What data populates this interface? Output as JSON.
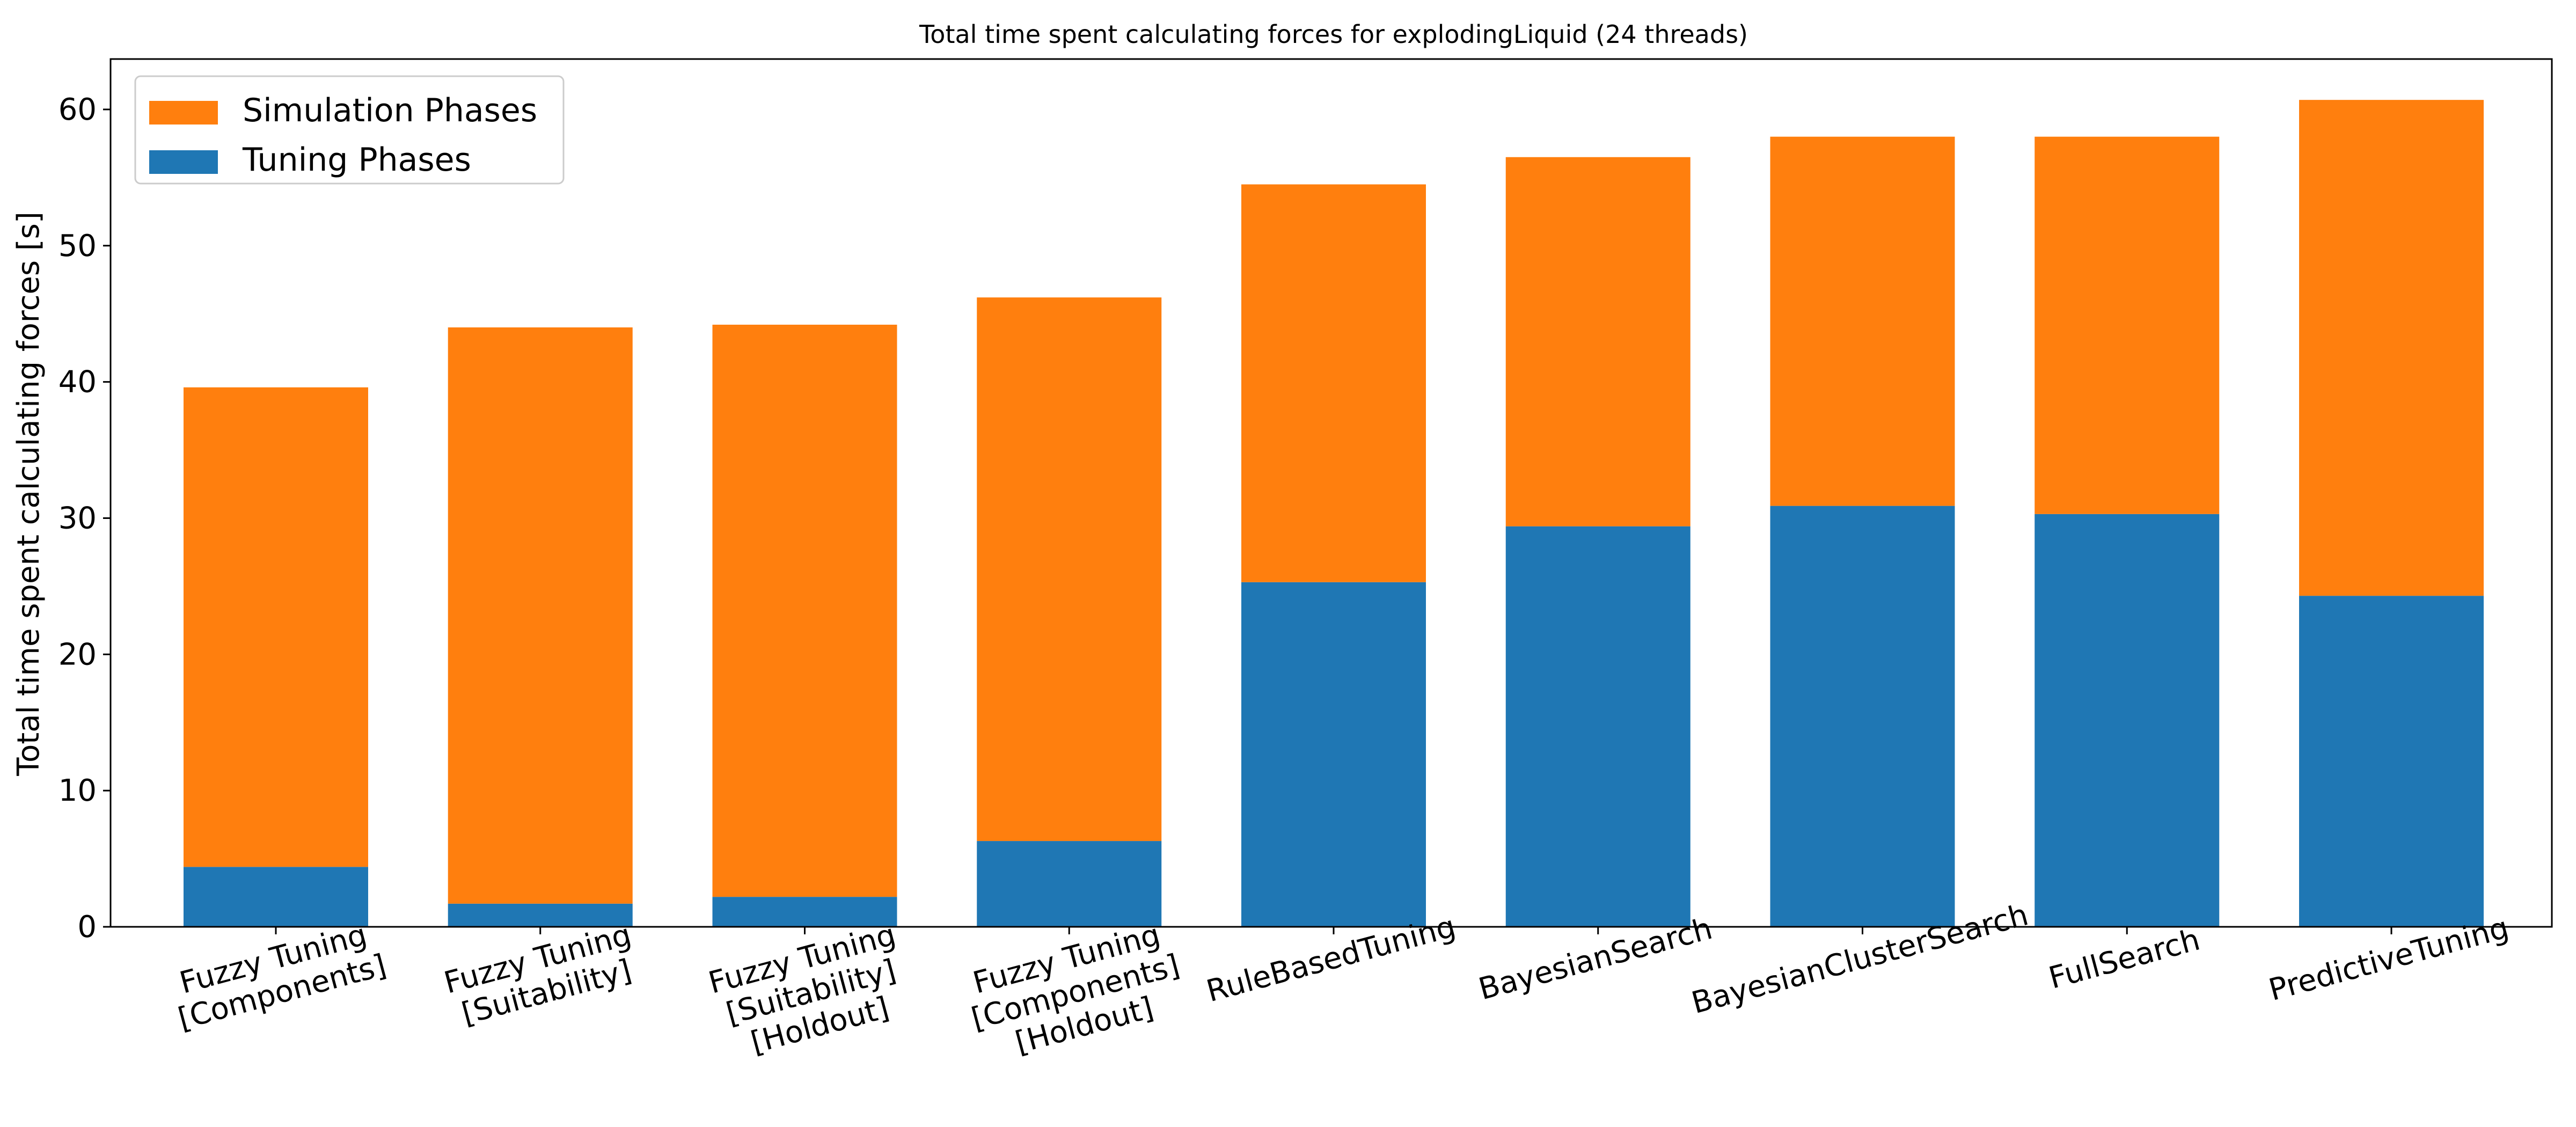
{
  "chart_data": {
    "type": "bar",
    "stacked": true,
    "title": "Total time spent calculating forces for explodingLiquid (24 threads)",
    "xlabel": "",
    "ylabel": "Total time spent calculating forces [s]",
    "ylim": [
      0,
      63.7
    ],
    "yticks": [
      0,
      10,
      20,
      30,
      40,
      50,
      60
    ],
    "grid": false,
    "legend_position": "top-left",
    "categories": [
      [
        "Fuzzy Tuning",
        "[Components]"
      ],
      [
        "Fuzzy Tuning",
        "[Suitability]"
      ],
      [
        "Fuzzy Tuning",
        "[Suitability]",
        "[Holdout]"
      ],
      [
        "Fuzzy Tuning",
        "[Components]",
        "[Holdout]"
      ],
      [
        "RuleBasedTuning"
      ],
      [
        "BayesianSearch"
      ],
      [
        "BayesianClusterSearch"
      ],
      [
        "FullSearch"
      ],
      [
        "PredictiveTuning"
      ]
    ],
    "series": [
      {
        "name": "Tuning Phases",
        "color": "#1f77b4",
        "values": [
          4.4,
          1.7,
          2.2,
          6.3,
          25.3,
          29.4,
          30.9,
          30.3,
          24.3
        ]
      },
      {
        "name": "Simulation Phases",
        "color": "#ff7f0e",
        "values": [
          35.2,
          42.3,
          42.0,
          39.9,
          29.2,
          27.1,
          27.1,
          27.7,
          36.4
        ]
      }
    ],
    "legend_order": [
      "Simulation Phases",
      "Tuning Phases"
    ]
  }
}
